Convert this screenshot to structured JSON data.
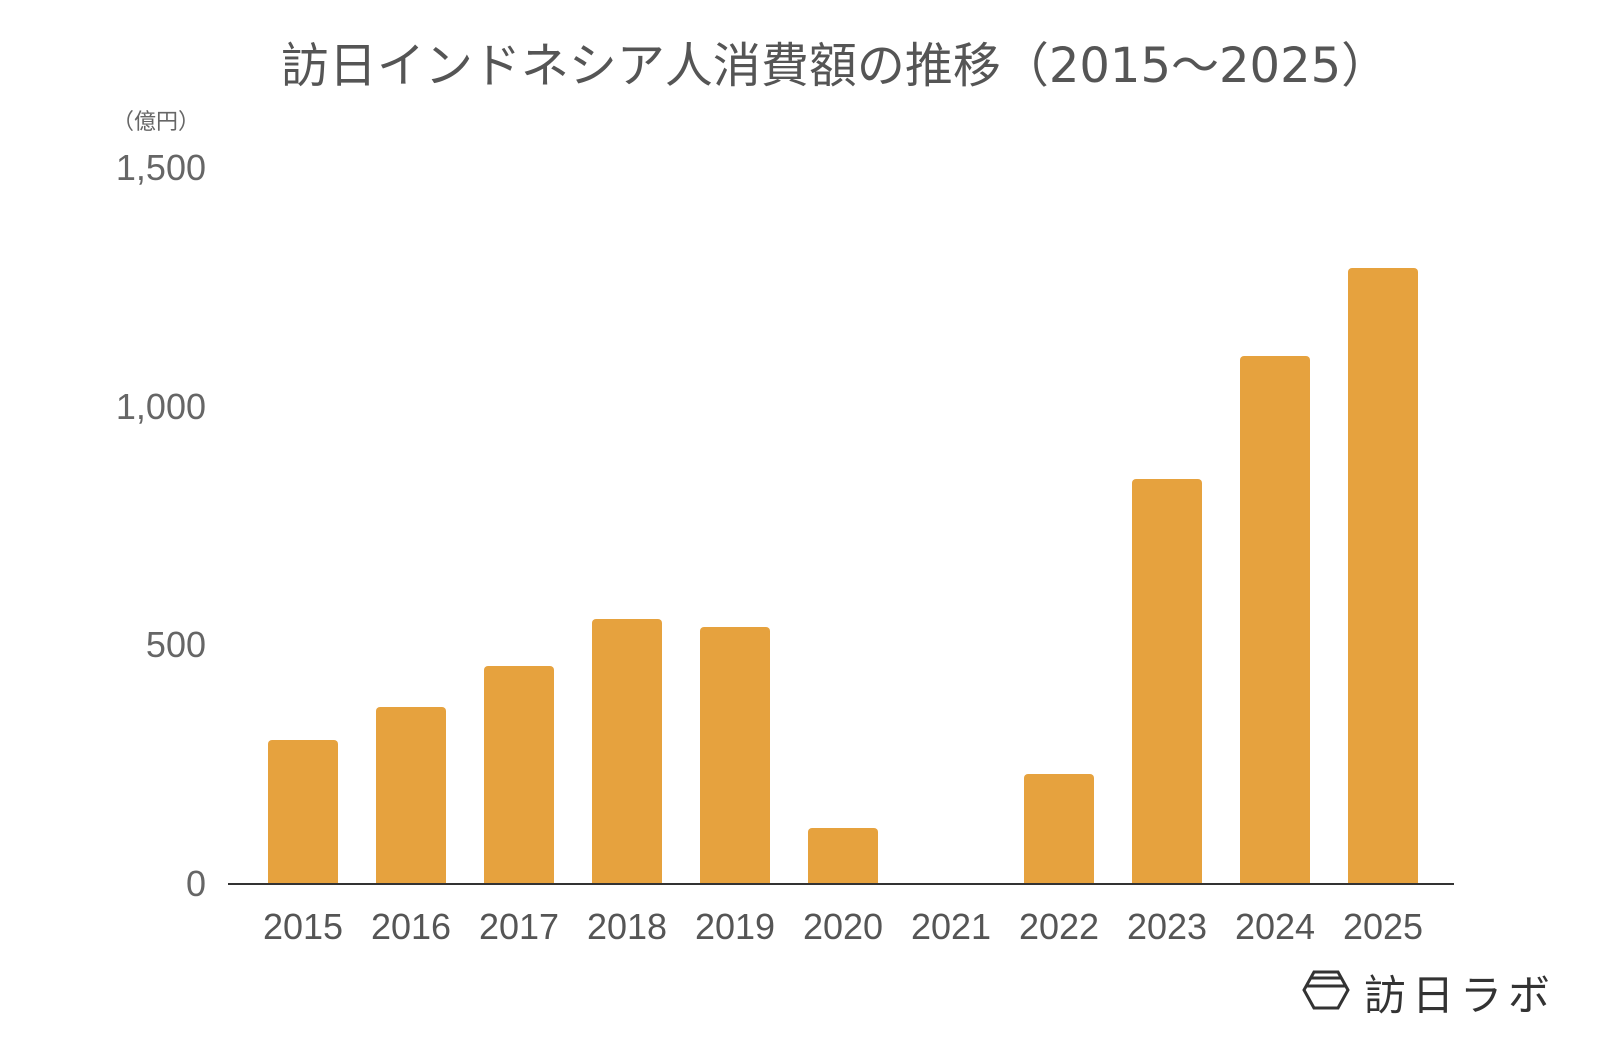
{
  "title": "訪日インドネシア人消費額の推移（2015〜2025）",
  "unit_label": "（億円）",
  "y_ticks": [
    "0",
    "500",
    "1,000",
    "1,500"
  ],
  "brand": {
    "name": "訪日ラボ",
    "icon": "hexagon-logo-icon"
  },
  "colors": {
    "bar": "#e6a23e",
    "axis": "#333333",
    "text": "#555555"
  },
  "chart_data": {
    "type": "bar",
    "title": "訪日インドネシア人消費額の推移（2015〜2025）",
    "xlabel": "",
    "ylabel": "（億円）",
    "ylim": [
      0,
      1500
    ],
    "grid": false,
    "legend": null,
    "categories": [
      "2015",
      "2016",
      "2017",
      "2018",
      "2019",
      "2020",
      "2021",
      "2022",
      "2023",
      "2024",
      "2025"
    ],
    "values": [
      302,
      371,
      457,
      555,
      538,
      117,
      0,
      230,
      849,
      1106,
      1291
    ],
    "y_tick_labels": [
      "0",
      "500",
      "1,000",
      "1,500"
    ]
  }
}
